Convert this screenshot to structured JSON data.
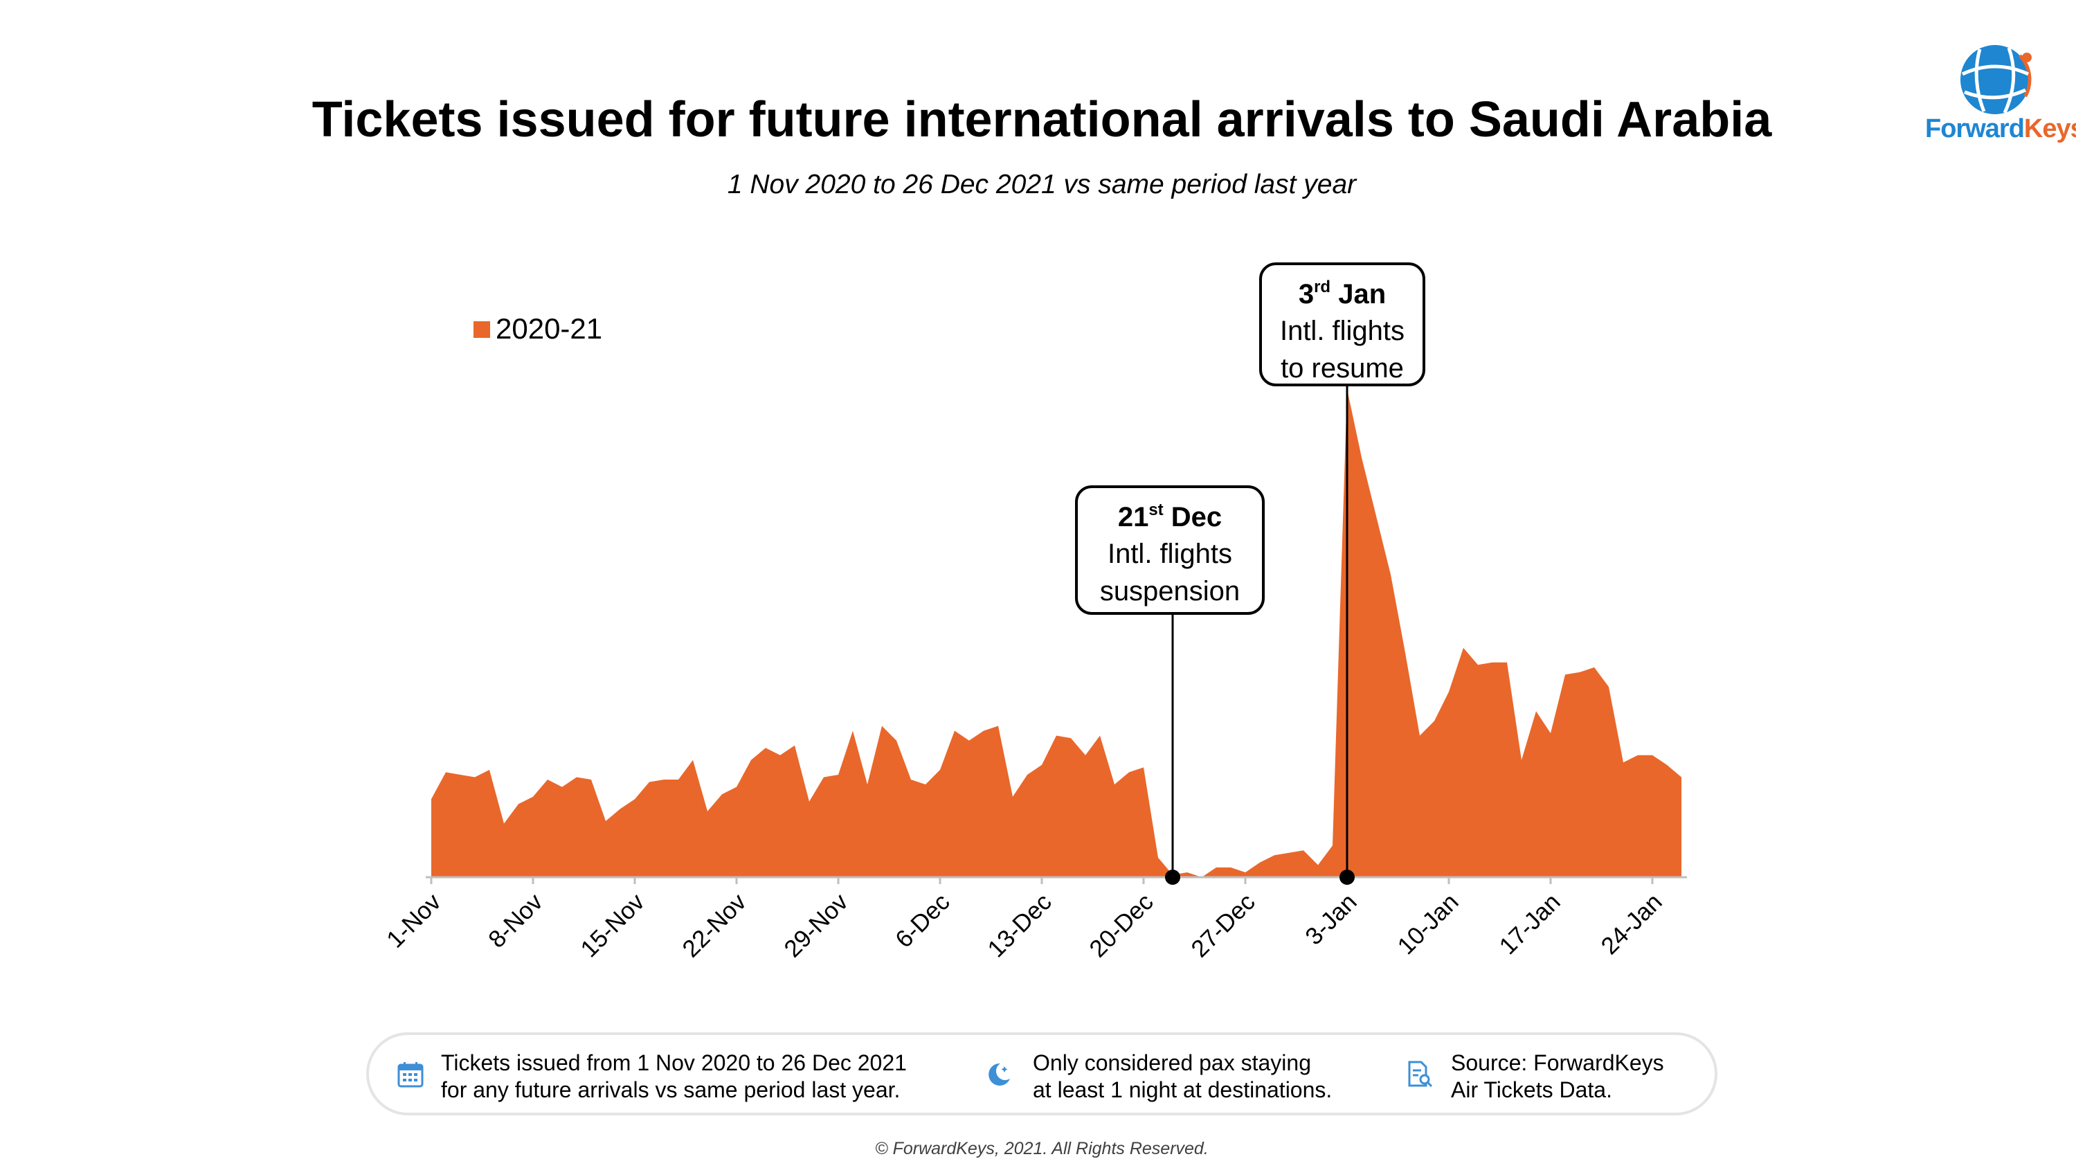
{
  "header": {
    "title": "Tickets issued for future international arrivals to Saudi Arabia",
    "subtitle": "1 Nov 2020 to 26 Dec 2021 vs same period last year"
  },
  "logo": {
    "text_part1": "Forward",
    "text_part2": "Keys",
    "icon": "globe-icon"
  },
  "chart_data": {
    "type": "area",
    "title": "Tickets issued for future international arrivals to Saudi Arabia",
    "subtitle": "1 Nov 2020 to 26 Dec 2021 vs same period last year",
    "xlabel": "",
    "ylabel": "",
    "y_axis_visible": false,
    "ylim": [
      0,
      100
    ],
    "grid": false,
    "legend_position": "top-left",
    "x_tick_labels": [
      "1-Nov",
      "8-Nov",
      "15-Nov",
      "22-Nov",
      "29-Nov",
      "6-Dec",
      "13-Dec",
      "20-Dec",
      "27-Dec",
      "3-Jan",
      "10-Jan",
      "17-Jan",
      "24-Jan"
    ],
    "x_tick_day_index": [
      0,
      7,
      14,
      21,
      28,
      35,
      42,
      49,
      56,
      63,
      70,
      77,
      84
    ],
    "series": [
      {
        "name": "2020-21",
        "color": "#e9672b",
        "start_date": "1-Nov",
        "values": [
          16,
          21.5,
          21,
          20.5,
          22,
          11,
          15,
          16.5,
          20,
          18.5,
          20.5,
          20,
          11.5,
          14,
          16,
          19.5,
          20,
          20,
          24,
          13.5,
          17,
          18.5,
          24,
          26.5,
          25,
          27,
          15.5,
          20.5,
          21,
          30,
          19,
          31,
          28,
          20,
          19,
          22,
          30,
          28,
          30,
          31,
          16.5,
          21,
          23,
          29,
          28.5,
          25,
          29,
          19,
          21.5,
          22.5,
          4,
          0.5,
          1,
          0,
          2,
          2,
          1,
          3,
          4.5,
          5,
          5.5,
          2.5,
          6.5,
          100,
          86,
          74,
          62,
          46,
          29,
          32,
          38,
          47,
          43.5,
          44,
          44,
          24,
          34,
          29.5,
          41.5,
          42,
          43,
          39,
          23.5,
          25,
          25,
          23,
          20.5
        ]
      }
    ],
    "annotations": [
      {
        "day_index": 51,
        "date": "21st Dec",
        "line1": "Intl. flights",
        "line2": "suspension"
      },
      {
        "day_index": 63,
        "date": "3rd Jan",
        "line1": "Intl. flights",
        "line2": "to resume"
      }
    ]
  },
  "annotation_labels": {
    "dec_num": "21",
    "dec_sup": "st",
    "dec_rest": " Dec",
    "dec_line1": "Intl. flights",
    "dec_line2": "suspension",
    "jan_num": "3",
    "jan_sup": "rd",
    "jan_rest": " Jan",
    "jan_line1": "Intl. flights",
    "jan_line2": "to resume"
  },
  "footer": {
    "note1_line1": "Tickets issued from 1 Nov 2020 to 26 Dec 2021",
    "note1_line2": "for any future arrivals vs same period last year.",
    "note1_icon": "calendar-icon",
    "note2_line1": "Only considered pax staying",
    "note2_line2": "at least 1 night at destinations.",
    "note2_icon": "moon-icon",
    "note3_line1": "Source: ForwardKeys",
    "note3_line2": "Air Tickets Data.",
    "note3_icon": "document-search-icon",
    "copyright": "© ForwardKeys, 2021. All Rights Reserved."
  },
  "colors": {
    "accent": "#e9672b",
    "brand_blue": "#1f86d1",
    "icon_blue": "#3d8fd6"
  }
}
